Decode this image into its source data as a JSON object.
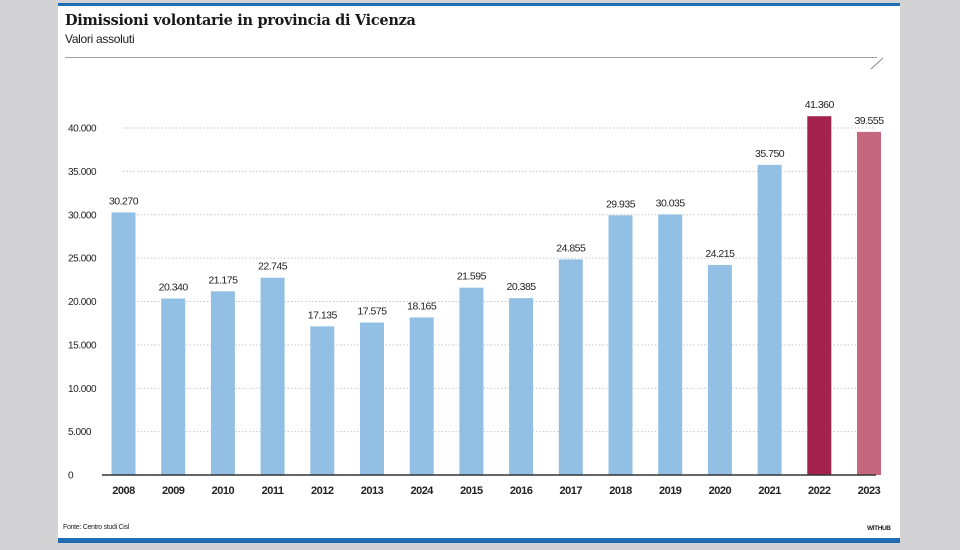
{
  "header": {
    "title": "Dimissioni volontarie in provincia di Vicenza",
    "subtitle": "Valori assoluti"
  },
  "footer": {
    "source": "Fonte: Centro studi Cisl",
    "credit": "WITHUB"
  },
  "colors": {
    "frame_blue": "#1f6eb5",
    "bar_default": "#92bfe4",
    "bar_2022": "#a3224e",
    "bar_2023": "#c4677f",
    "background": "#d3d3d5"
  },
  "chart_data": {
    "type": "bar",
    "title": "Dimissioni volontarie in provincia di Vicenza",
    "subtitle": "Valori assoluti",
    "xlabel": "",
    "ylabel": "",
    "ylim": [
      0,
      40000
    ],
    "grid": true,
    "yticks": [
      0,
      5000,
      10000,
      15000,
      20000,
      25000,
      30000,
      35000,
      40000
    ],
    "ytick_labels": [
      "0",
      "5.000",
      "10.000",
      "15.000",
      "20.000",
      "25.000",
      "30.000",
      "35.000",
      "40.000"
    ],
    "categories": [
      "2008",
      "2009",
      "2010",
      "2011",
      "2012",
      "2013",
      "2024",
      "2015",
      "2016",
      "2017",
      "2018",
      "2019",
      "2020",
      "2021",
      "2022",
      "2023"
    ],
    "values": [
      30270,
      20340,
      21175,
      22745,
      17135,
      17575,
      18165,
      21595,
      20385,
      24855,
      29935,
      30035,
      24215,
      35750,
      41360,
      39555
    ],
    "value_labels": [
      "30.270",
      "20.340",
      "21.175",
      "22.745",
      "17.135",
      "17.575",
      "18.165",
      "21.595",
      "20.385",
      "24.855",
      "29.935",
      "30.035",
      "24.215",
      "35.750",
      "41.360",
      "39.555"
    ],
    "bar_colors": [
      "#92bfe4",
      "#92bfe4",
      "#92bfe4",
      "#92bfe4",
      "#92bfe4",
      "#92bfe4",
      "#92bfe4",
      "#92bfe4",
      "#92bfe4",
      "#92bfe4",
      "#92bfe4",
      "#92bfe4",
      "#92bfe4",
      "#92bfe4",
      "#a3224e",
      "#c4677f"
    ],
    "source": "Fonte: Centro studi Cisl"
  }
}
